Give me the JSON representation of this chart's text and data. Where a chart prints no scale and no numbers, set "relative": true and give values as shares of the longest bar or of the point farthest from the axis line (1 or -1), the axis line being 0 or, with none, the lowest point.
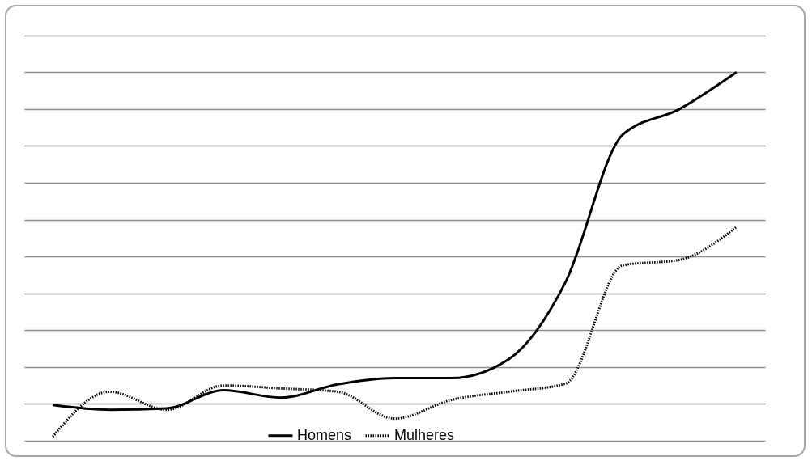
{
  "chart_data": {
    "type": "line",
    "relative": true,
    "categories": [
      null,
      null,
      null,
      null,
      null,
      null,
      null,
      null,
      null,
      null,
      null,
      null,
      null
    ],
    "series": [
      {
        "name": "Homens",
        "color": "#000000",
        "line_style": "solid",
        "values": [
          0.097,
          0.084,
          0.088,
          0.137,
          0.117,
          0.153,
          0.17,
          0.17,
          0.221,
          0.431,
          0.83,
          0.9,
          1
        ]
      },
      {
        "name": "Mulheres",
        "color": "#000000",
        "line_style": "dotted",
        "values": [
          0.011,
          0.133,
          0.084,
          0.15,
          0.142,
          0.133,
          0.06,
          0.111,
          0.133,
          0.155,
          0.476,
          0.491,
          0.58
        ]
      }
    ],
    "grid": true,
    "legend": "bottom",
    "marker": "none"
  }
}
